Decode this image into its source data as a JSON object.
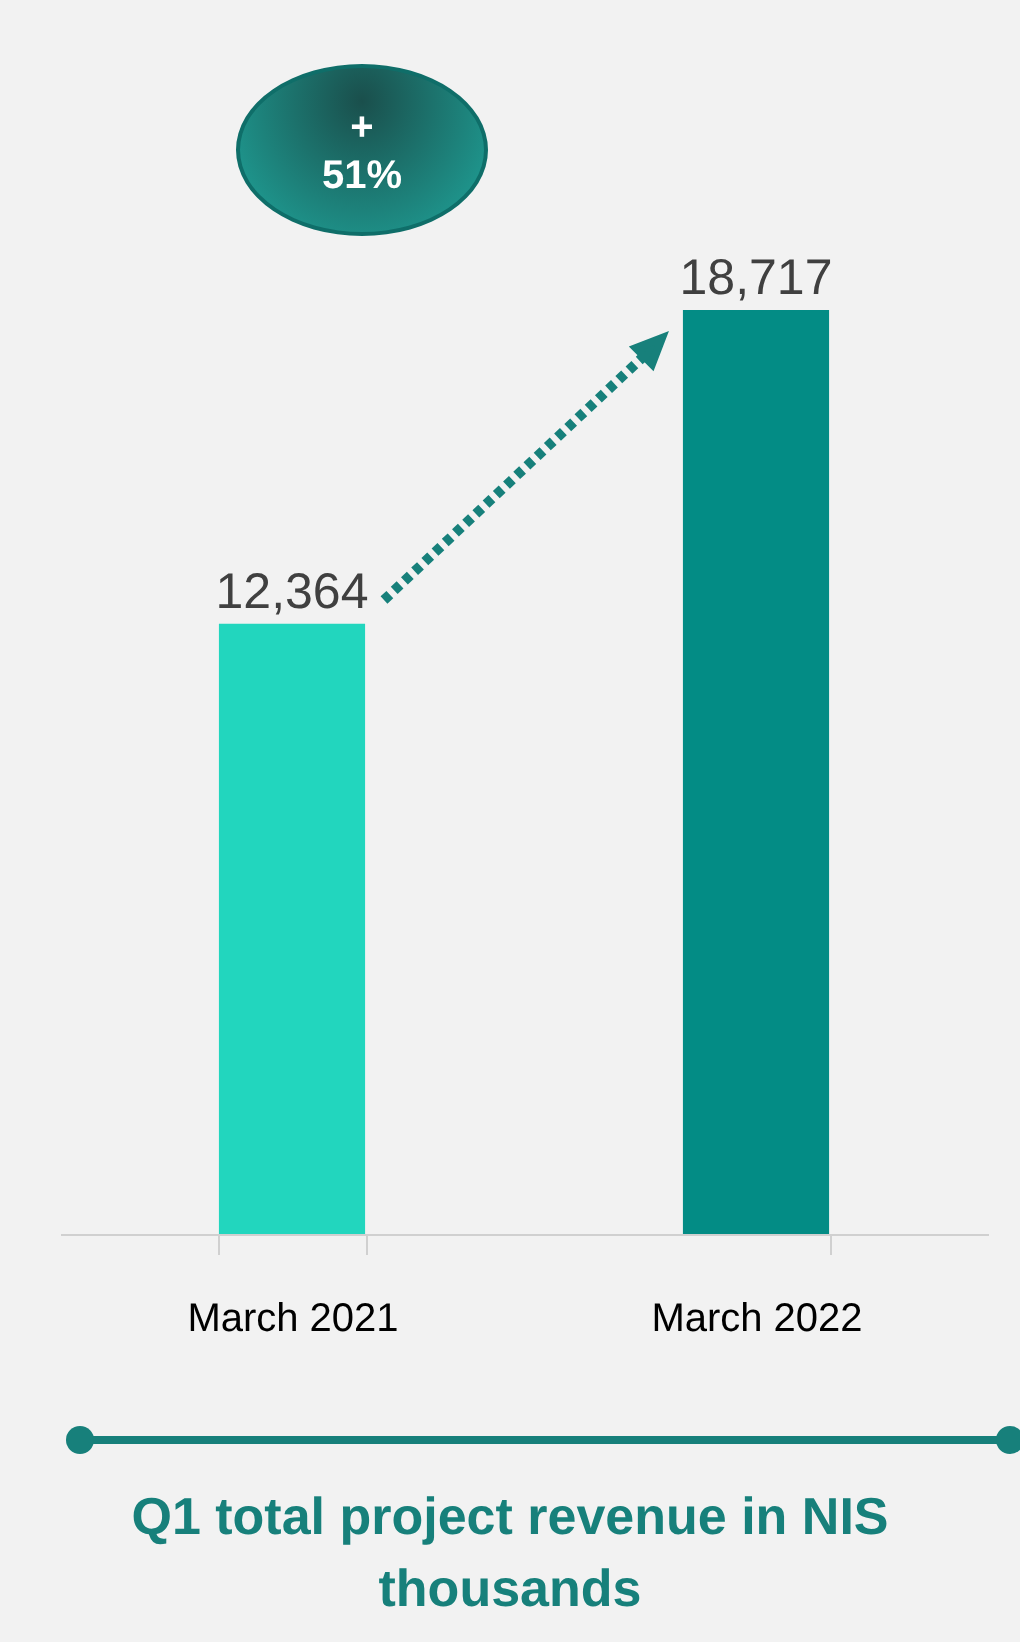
{
  "chart_data": {
    "type": "bar",
    "title": "Q1 total project revenue in NIS thousands",
    "categories": [
      "March 2021",
      "March 2022"
    ],
    "values": [
      12364,
      18717
    ],
    "colors": [
      "#22d6be",
      "#038c85"
    ],
    "value_labels": [
      "12,364",
      "18,717"
    ],
    "grid": false,
    "annotations": [
      "+ 51%"
    ]
  }
}
